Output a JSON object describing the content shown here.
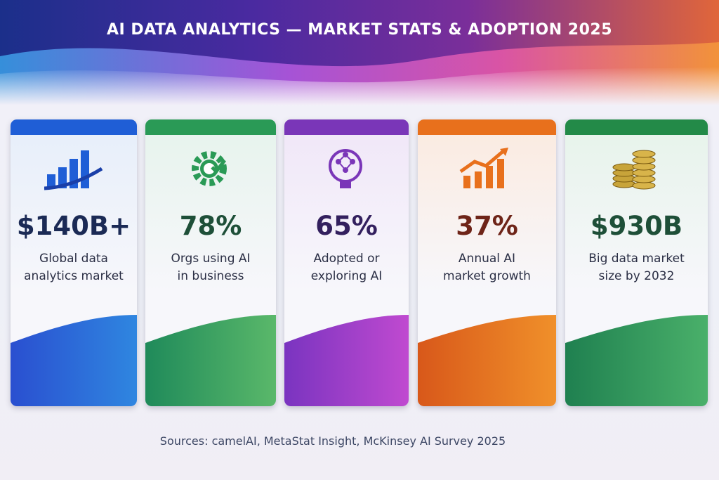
{
  "header": {
    "title": "AI DATA ANALYTICS — MARKET STATS & ADOPTION 2025"
  },
  "cards": [
    {
      "value": "$140B+",
      "label_lines": [
        "Global data",
        "analytics market"
      ]
    },
    {
      "value": "78%",
      "label_lines": [
        "Orgs using AI",
        "in business"
      ]
    },
    {
      "value": "65%",
      "label_lines": [
        "Adopted or",
        "exploring AI"
      ]
    },
    {
      "value": "37%",
      "label_lines": [
        "Annual AI",
        "market growth"
      ]
    },
    {
      "value": "$930B",
      "label_lines": [
        "Big data market",
        "size by 2032"
      ]
    }
  ],
  "footer": {
    "sources": "Sources: camelAI, MetaStat Insight, McKinsey AI Survey 2025"
  }
}
